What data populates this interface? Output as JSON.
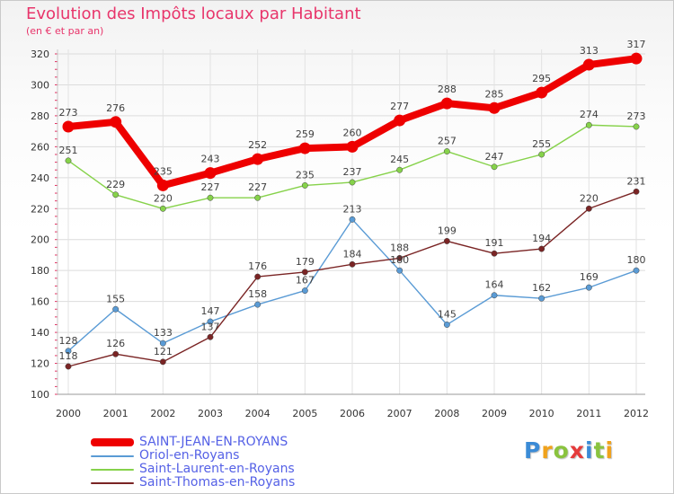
{
  "header": {
    "title": "Evolution des Impôts locaux par Habitant",
    "subtitle": "(en € et par an)"
  },
  "brand": {
    "name": "Proxiti",
    "letter_colors": [
      "#3b8bd6",
      "#f0a21c",
      "#8ac33e",
      "#e53b3b",
      "#3b8bd6",
      "#8ac33e",
      "#f0a21c"
    ]
  },
  "chart_data": {
    "type": "line",
    "title": "Evolution des Impôts locaux par Habitant",
    "subtitle": "(en € et par an)",
    "xlabel": "",
    "ylabel": "",
    "grid": true,
    "legend": "bottom-left",
    "ylim": [
      100,
      320
    ],
    "yticks": [
      100,
      120,
      140,
      160,
      180,
      200,
      220,
      240,
      260,
      280,
      300,
      320
    ],
    "categories": [
      "2000",
      "2001",
      "2002",
      "2003",
      "2004",
      "2005",
      "2006",
      "2007",
      "2008",
      "2009",
      "2010",
      "2011",
      "2012"
    ],
    "series": [
      {
        "name": "SAINT-JEAN-EN-ROYANS",
        "color": "#ee0000",
        "emphasis": true,
        "values": [
          273,
          276,
          235,
          243,
          252,
          259,
          260,
          277,
          288,
          285,
          295,
          313,
          317
        ]
      },
      {
        "name": "Oriol-en-Royans",
        "color": "#5a9bd5",
        "emphasis": false,
        "values": [
          128,
          155,
          133,
          147,
          158,
          167,
          213,
          180,
          145,
          164,
          162,
          169,
          180
        ]
      },
      {
        "name": "Saint-Laurent-en-Royans",
        "color": "#86d24a",
        "emphasis": false,
        "values": [
          251,
          229,
          220,
          227,
          227,
          235,
          237,
          245,
          257,
          247,
          255,
          274,
          273
        ]
      },
      {
        "name": "Saint-Thomas-en-Royans",
        "color": "#7a2424",
        "emphasis": false,
        "values": [
          118,
          126,
          121,
          137,
          176,
          179,
          184,
          188,
          199,
          191,
          194,
          220,
          231
        ]
      }
    ]
  }
}
